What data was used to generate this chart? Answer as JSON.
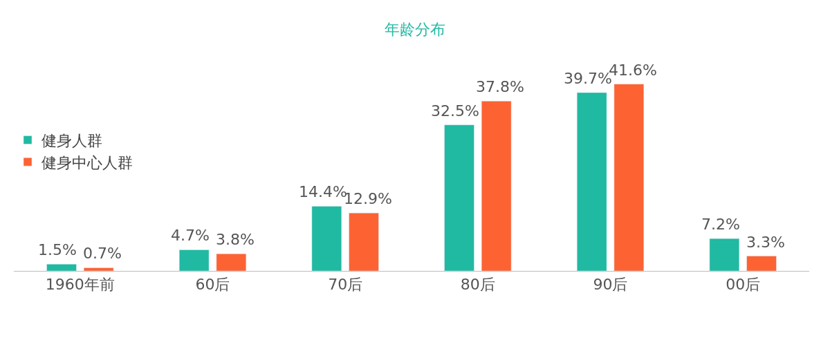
{
  "chart_data": {
    "type": "bar",
    "title": "年龄分布",
    "categories": [
      "1960年前",
      "60后",
      "70后",
      "80后",
      "90后",
      "00后"
    ],
    "series": [
      {
        "name": "健身人群",
        "color": "#20b9a2",
        "values": [
          1.5,
          4.7,
          14.4,
          32.5,
          39.7,
          7.2
        ],
        "value_labels": [
          "1.5%",
          "4.7%",
          "14.4%",
          "32.5%",
          "39.7%",
          "7.2%"
        ]
      },
      {
        "name": "健身中心人群",
        "color": "#fd6233",
        "values": [
          0.7,
          3.8,
          12.9,
          37.8,
          41.6,
          3.3
        ],
        "value_labels": [
          "0.7%",
          "3.8%",
          "12.9%",
          "37.8%",
          "41.6%",
          "3.3%"
        ]
      }
    ],
    "legend": "top left"
  }
}
